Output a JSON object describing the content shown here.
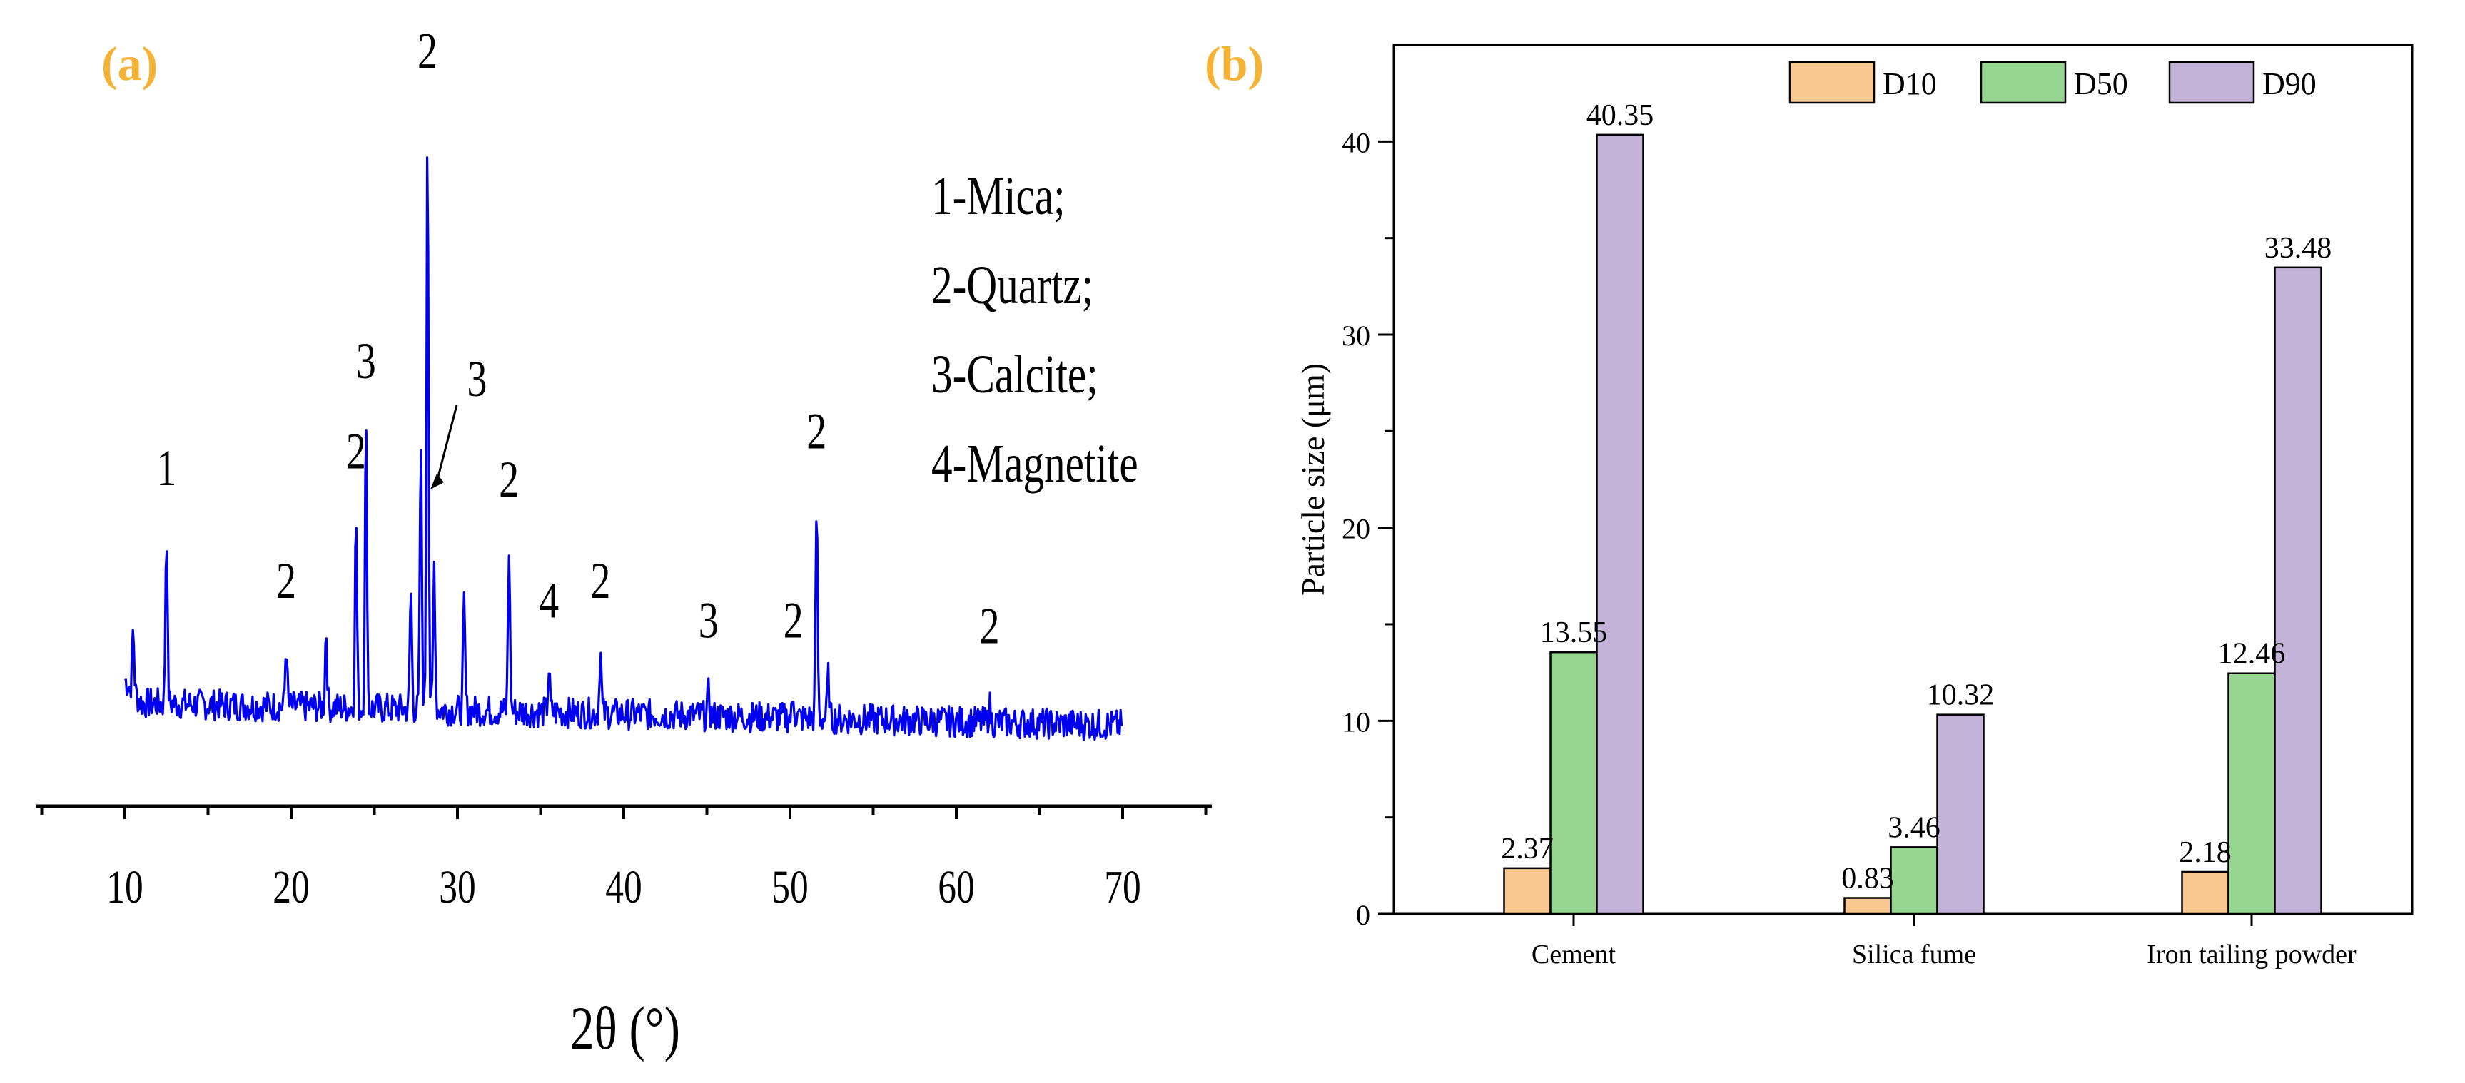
{
  "colors": {
    "panel_label": "#F5B335",
    "xrd_line": "#0000EE",
    "axis": "#000000",
    "d10": "#F9C891",
    "d50": "#96D691",
    "d90": "#C4B3D9"
  },
  "chart_data": [
    {
      "type": "line",
      "panel_label": "(a)",
      "title": "",
      "xlabel": "2θ (°)",
      "ylabel": "",
      "xlim": [
        5,
        75
      ],
      "xticks": [
        "10",
        "20",
        "30",
        "40",
        "50",
        "60",
        "70"
      ],
      "grid": false,
      "legend_position": "top-right",
      "legend_entries": [
        "1-Mica;",
        "2-Quartz;",
        "3-Calcite;",
        "4-Magnetite"
      ],
      "series": [
        {
          "x": [
            10.5,
            12.5,
            19.7,
            22.1,
            23.9,
            24.5,
            27.2,
            27.8,
            28.2,
            28.6,
            30.4,
            33.1,
            35.5,
            38.6,
            45.1,
            50.2,
            51.6,
            52.3,
            62.0
          ],
          "y": [
            0.22,
            0.62,
            0.22,
            0.28,
            0.68,
            1.0,
            0.43,
            0.93,
            2.1,
            0.52,
            0.38,
            0.58,
            0.15,
            0.22,
            0.08,
            0.08,
            0.75,
            0.15,
            0.06
          ]
        }
      ],
      "annotations": [
        {
          "text": "1",
          "x": 12.5
        },
        {
          "text": "2",
          "x": 19.7
        },
        {
          "text": "2",
          "x": 23.9
        },
        {
          "text": "3",
          "x": 24.5
        },
        {
          "text": "2",
          "x": 28.2
        },
        {
          "text": "3",
          "x": 28.6
        },
        {
          "text": "2",
          "x": 33.1
        },
        {
          "text": "4",
          "x": 35.5
        },
        {
          "text": "2",
          "x": 38.6
        },
        {
          "text": "3",
          "x": 45.1
        },
        {
          "text": "2",
          "x": 50.2
        },
        {
          "text": "2",
          "x": 51.6
        },
        {
          "text": "2",
          "x": 62.0
        }
      ]
    },
    {
      "type": "bar",
      "panel_label": "(b)",
      "title": "",
      "xlabel": "",
      "ylabel": "Particle size (μm)",
      "ylim": [
        0,
        45
      ],
      "yticks": [
        "0",
        "10",
        "20",
        "30",
        "40"
      ],
      "grid": false,
      "legend_position": "top-right",
      "categories": [
        "Cement",
        "Silica fume",
        "Iron tailing powder"
      ],
      "series": [
        {
          "name": "D10",
          "values": [
            2.37,
            0.83,
            2.18
          ],
          "labels": [
            "2.37",
            "0.83",
            "2.18"
          ]
        },
        {
          "name": "D50",
          "values": [
            13.55,
            3.46,
            12.46
          ],
          "labels": [
            "13.55",
            "3.46",
            "12.46"
          ]
        },
        {
          "name": "D90",
          "values": [
            40.35,
            10.32,
            33.48
          ],
          "labels": [
            "40.35",
            "10.32",
            "33.48"
          ]
        }
      ]
    }
  ]
}
